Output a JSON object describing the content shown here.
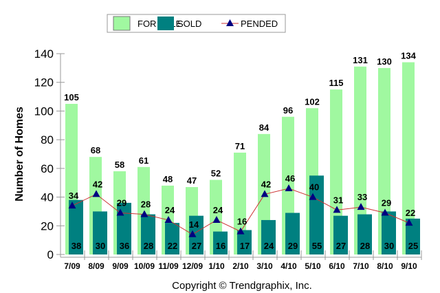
{
  "chart_data": {
    "type": "bar",
    "title": "",
    "xlabel": "",
    "ylabel": "Number of Homes",
    "ylim": [
      0,
      140
    ],
    "yticks": [
      0,
      20,
      40,
      60,
      80,
      100,
      120,
      140
    ],
    "categories": [
      "7/09",
      "8/09",
      "9/09",
      "10/09",
      "11/09",
      "12/09",
      "1/10",
      "2/10",
      "3/10",
      "4/10",
      "5/10",
      "6/10",
      "7/10",
      "8/10",
      "9/10"
    ],
    "series": [
      {
        "name": "FOR SALE",
        "type": "bar",
        "color": "#a0f8a0",
        "values": [
          105,
          68,
          58,
          61,
          48,
          47,
          52,
          71,
          84,
          96,
          102,
          115,
          131,
          130,
          134
        ]
      },
      {
        "name": "SOLD",
        "type": "bar",
        "color": "#008080",
        "values": [
          38,
          30,
          36,
          28,
          22,
          27,
          16,
          17,
          24,
          29,
          55,
          27,
          28,
          30,
          25
        ]
      },
      {
        "name": "PENDED",
        "type": "line",
        "color": "#cc3333",
        "marker_color": "#000080",
        "values": [
          34,
          42,
          29,
          28,
          24,
          14,
          24,
          16,
          42,
          46,
          40,
          31,
          33,
          29,
          22
        ]
      }
    ],
    "legend": "top-center",
    "grid": false,
    "footer": "Copyright © Trendgraphix, Inc."
  }
}
